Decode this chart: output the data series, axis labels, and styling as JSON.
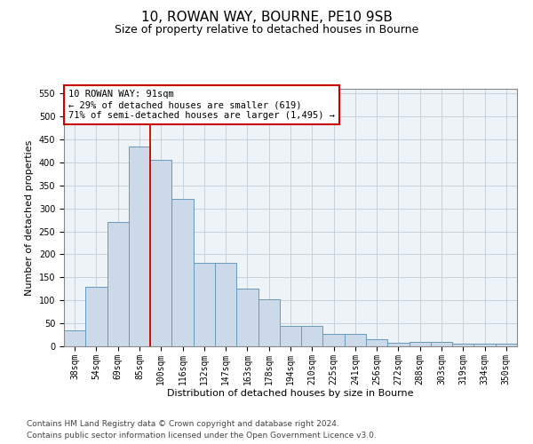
{
  "title_line1": "10, ROWAN WAY, BOURNE, PE10 9SB",
  "title_line2": "Size of property relative to detached houses in Bourne",
  "xlabel": "Distribution of detached houses by size in Bourne",
  "ylabel": "Number of detached properties",
  "categories": [
    "38sqm",
    "54sqm",
    "69sqm",
    "85sqm",
    "100sqm",
    "116sqm",
    "132sqm",
    "147sqm",
    "163sqm",
    "178sqm",
    "194sqm",
    "210sqm",
    "225sqm",
    "241sqm",
    "256sqm",
    "272sqm",
    "288sqm",
    "303sqm",
    "319sqm",
    "334sqm",
    "350sqm"
  ],
  "values": [
    35,
    130,
    270,
    435,
    405,
    320,
    182,
    182,
    125,
    103,
    45,
    45,
    28,
    28,
    15,
    7,
    10,
    10,
    5,
    5,
    5
  ],
  "bar_color": "#ccd9e8",
  "bar_edge_color": "#6699bb",
  "vline_color": "#cc0000",
  "vline_index": 3.5,
  "annotation_text": "10 ROWAN WAY: 91sqm\n← 29% of detached houses are smaller (619)\n71% of semi-detached houses are larger (1,495) →",
  "annotation_box_color": "#ffffff",
  "annotation_box_edge": "#cc0000",
  "ylim": [
    0,
    560
  ],
  "yticks": [
    0,
    50,
    100,
    150,
    200,
    250,
    300,
    350,
    400,
    450,
    500,
    550
  ],
  "bg_color": "#eef3f8",
  "grid_color": "#c0cdd8",
  "footer_line1": "Contains HM Land Registry data © Crown copyright and database right 2024.",
  "footer_line2": "Contains public sector information licensed under the Open Government Licence v3.0.",
  "title_fontsize": 11,
  "subtitle_fontsize": 9,
  "axis_label_fontsize": 8,
  "tick_fontsize": 7,
  "annotation_fontsize": 7.5,
  "footer_fontsize": 6.5
}
